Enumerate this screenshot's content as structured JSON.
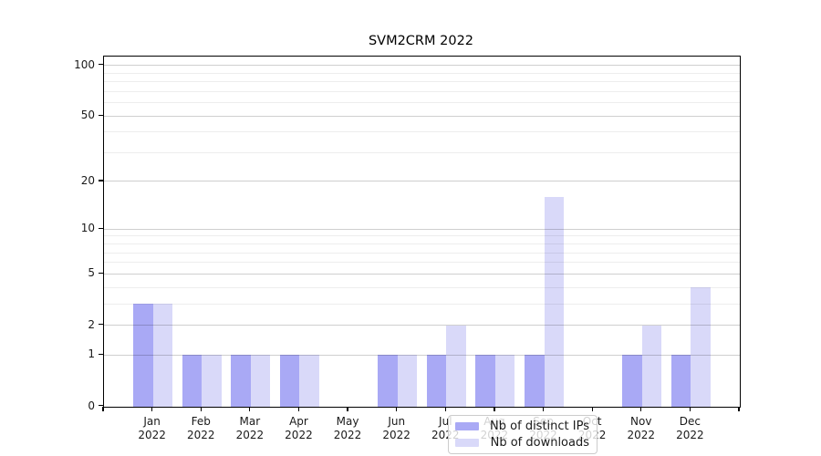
{
  "title": "SVM2CRM 2022",
  "chart_data": {
    "type": "bar",
    "title": "SVM2CRM 2022",
    "x_categories": [
      "Jan",
      "Feb",
      "Mar",
      "Apr",
      "May",
      "Jun",
      "Jul",
      "Aug",
      "Sep",
      "Oct",
      "Nov",
      "Dec"
    ],
    "x_year": "2022",
    "series": [
      {
        "name": "Nb of distinct IPs",
        "color": "#a9a9f5",
        "values": [
          3,
          1,
          1,
          1,
          0,
          1,
          1,
          1,
          1,
          0,
          1,
          1
        ]
      },
      {
        "name": "Nb of downloads",
        "color": "#d9d9f9",
        "values": [
          3,
          1,
          1,
          1,
          0,
          1,
          2,
          1,
          16,
          0,
          2,
          4
        ]
      }
    ],
    "y_scale": "log1p",
    "y_major_ticks": [
      0,
      1,
      2,
      5,
      10,
      20,
      50,
      100
    ],
    "y_minor_gridlines": [
      3,
      4,
      6,
      7,
      8,
      9,
      30,
      40,
      60,
      70,
      80,
      90
    ],
    "ylim": [
      0,
      112.8
    ],
    "grid": true,
    "legend_position": "inside-bottom-center",
    "colors": {
      "bar_distinct_ips": "#a9a9f5",
      "bar_downloads": "#d9d9f9",
      "grid_major": "#cfcfcf",
      "grid_minor": "#ededed",
      "spine": "#000000",
      "text": "#1a1a1a"
    }
  }
}
